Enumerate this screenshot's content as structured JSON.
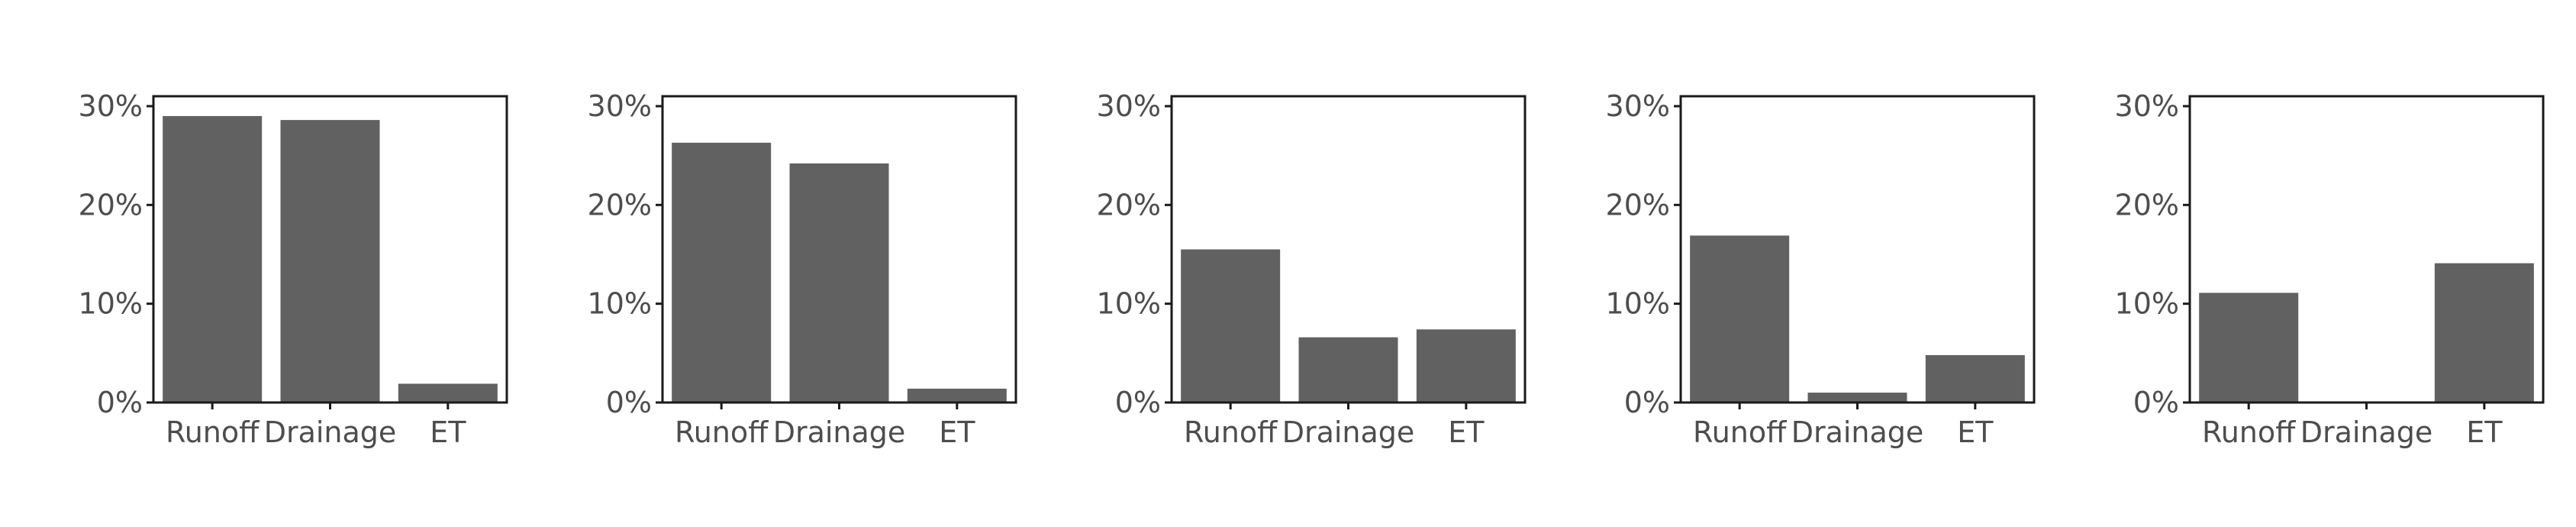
{
  "chart_data": [
    {
      "type": "bar",
      "categories": [
        "Runoff",
        "Drainage",
        "ET"
      ],
      "values": [
        29.0,
        28.6,
        1.9
      ],
      "y_tick_labels": [
        "0%",
        "10%",
        "20%",
        "30%"
      ],
      "ylim": [
        0,
        30
      ],
      "unit": "%",
      "bar_color": "#616161",
      "grid": false
    },
    {
      "type": "bar",
      "categories": [
        "Runoff",
        "Drainage",
        "ET"
      ],
      "values": [
        26.3,
        24.2,
        1.4
      ],
      "y_tick_labels": [
        "0%",
        "10%",
        "20%",
        "30%"
      ],
      "ylim": [
        0,
        30
      ],
      "unit": "%",
      "bar_color": "#616161",
      "grid": false
    },
    {
      "type": "bar",
      "categories": [
        "Runoff",
        "Drainage",
        "ET"
      ],
      "values": [
        15.5,
        6.6,
        7.4
      ],
      "y_tick_labels": [
        "0%",
        "10%",
        "20%",
        "30%"
      ],
      "ylim": [
        0,
        30
      ],
      "unit": "%",
      "bar_color": "#616161",
      "grid": false
    },
    {
      "type": "bar",
      "categories": [
        "Runoff",
        "Drainage",
        "ET"
      ],
      "values": [
        16.9,
        1.0,
        4.8
      ],
      "y_tick_labels": [
        "0%",
        "10%",
        "20%",
        "30%"
      ],
      "ylim": [
        0,
        30
      ],
      "unit": "%",
      "bar_color": "#616161",
      "grid": false
    },
    {
      "type": "bar",
      "categories": [
        "Runoff",
        "Drainage",
        "ET"
      ],
      "values": [
        11.1,
        0.0,
        14.1
      ],
      "y_tick_labels": [
        "0%",
        "10%",
        "20%",
        "30%"
      ],
      "ylim": [
        0,
        30
      ],
      "unit": "%",
      "bar_color": "#616161",
      "grid": false
    }
  ]
}
